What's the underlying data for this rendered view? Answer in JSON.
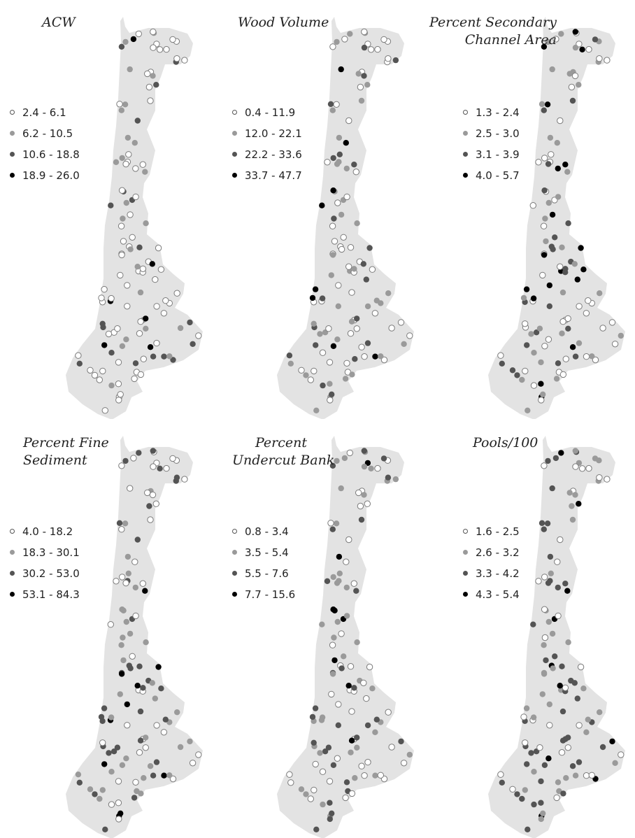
{
  "figure": {
    "shared_colors": {
      "land": "#e3e3e3",
      "class_colors": [
        "#ffffff",
        "#9a9a9a",
        "#545454",
        "#000000"
      ],
      "dot_outline": "#7a7a7a"
    },
    "panels": [
      {
        "title_lines": [
          "ACW"
        ],
        "legend": [
          "2.4 - 6.1",
          "6.2 - 10.5",
          "10.6 - 18.8",
          "18.9 - 26.0"
        ],
        "class_counts": [
          70,
          24,
          18,
          6
        ]
      },
      {
        "title_lines": [
          "Wood Volume"
        ],
        "legend": [
          "0.4 - 11.9",
          "12.0 - 22.1",
          "22.2 - 33.6",
          "33.7 - 47.7"
        ],
        "class_counts": [
          52,
          38,
          20,
          8
        ]
      },
      {
        "title_lines": [
          "Percent Secondary",
          "Channel Area"
        ],
        "legend": [
          "1.3 - 2.4",
          "2.5 - 3.0",
          "3.1 - 3.9",
          "4.0 - 5.7"
        ],
        "class_counts": [
          44,
          34,
          22,
          18
        ]
      },
      {
        "title_lines": [
          "Percent Fine",
          "Sediment"
        ],
        "legend": [
          "4.0 - 18.2",
          "18.3 - 30.1",
          "30.2 - 53.0",
          "53.1 - 84.3"
        ],
        "class_counts": [
          40,
          34,
          34,
          10
        ]
      },
      {
        "title_lines": [
          "Percent",
          "Undercut Bank"
        ],
        "legend": [
          "0.8 - 3.4",
          "3.5 - 5.4",
          "5.5 - 7.6",
          "7.7 - 15.6"
        ],
        "class_counts": [
          42,
          40,
          28,
          8
        ]
      },
      {
        "title_lines": [
          "Pools/100"
        ],
        "legend": [
          "1.6 - 2.5",
          "2.6 - 3.2",
          "3.3 - 4.2",
          "4.3 - 5.4"
        ],
        "class_counts": [
          30,
          36,
          42,
          10
        ]
      }
    ]
  }
}
